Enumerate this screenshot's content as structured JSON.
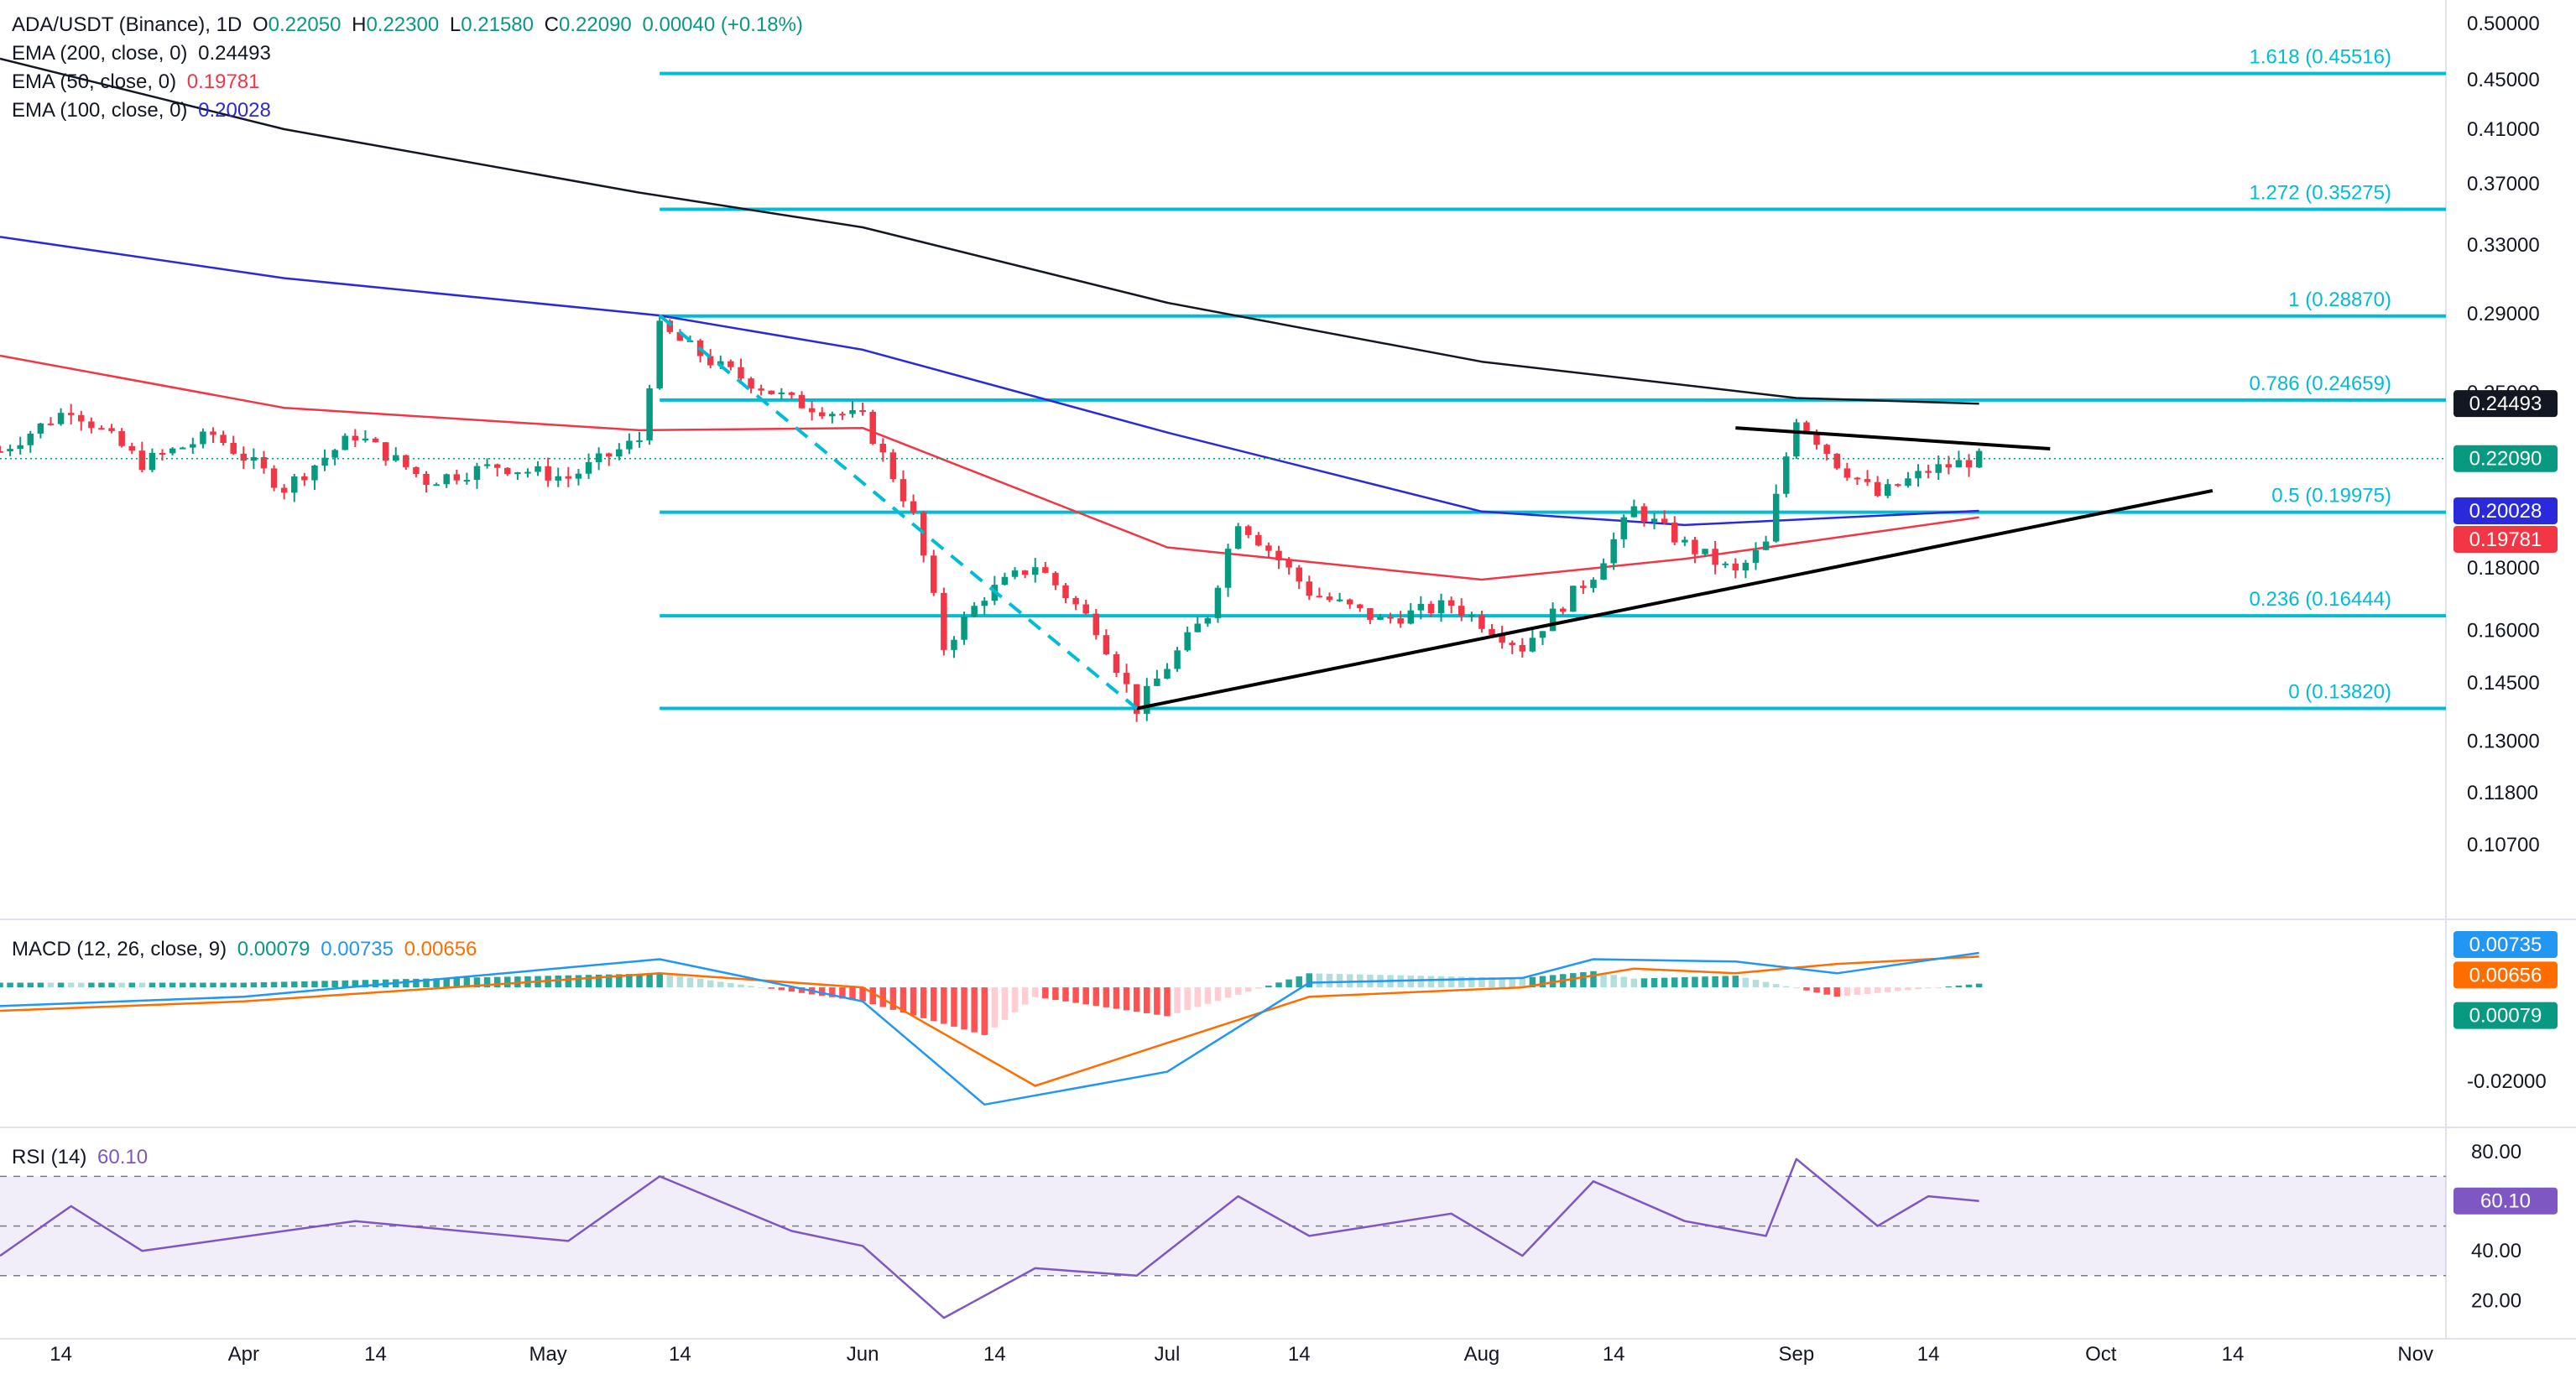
{
  "header": {
    "symbol": "ADA/USDT (Binance), 1D",
    "o_label": "O",
    "o": "0.22050",
    "h_label": "H",
    "h": "0.22300",
    "l_label": "L",
    "l": "0.21580",
    "c_label": "C",
    "c": "0.22090",
    "change": "0.00040 (+0.18%)"
  },
  "ema_legend": [
    {
      "label": "EMA (200, close, 0)",
      "value": "0.24493",
      "color": "#131722"
    },
    {
      "label": "EMA (50, close, 0)",
      "value": "0.19781",
      "color": "#f23645"
    },
    {
      "label": "EMA (100, close, 0)",
      "value": "0.20028",
      "color": "#2a2adb"
    }
  ],
  "macd_legend": {
    "label": "MACD (12, 26, close, 9)",
    "hist": "0.00079",
    "macd": "0.00735",
    "signal": "0.00656"
  },
  "rsi_legend": {
    "label": "RSI (14)",
    "value": "60.10"
  },
  "colors": {
    "up": "#089981",
    "down": "#f23645",
    "fib": "#00bcd4",
    "ema200": "#131722",
    "ema50": "#f23645",
    "ema100": "#2a2adb",
    "macd": "#2196f3",
    "signal": "#ff6d00",
    "rsi": "#7e57c2"
  },
  "chart_data": [
    {
      "type": "candlestick",
      "symbol": "ADA/USDT",
      "timeframe": "1D",
      "y_scale": "log",
      "ylim": [
        0.1,
        0.5
      ],
      "y_ticks": [
        "0.50000",
        "0.45000",
        "0.41000",
        "0.37000",
        "0.33000",
        "0.29000",
        "0.25000",
        "0.18000",
        "0.16000",
        "0.14500",
        "0.13000",
        "0.11800",
        "0.10700"
      ],
      "x_ticks": [
        "14",
        "Apr",
        "14",
        "May",
        "14",
        "Jun",
        "14",
        "Jul",
        "14",
        "Aug",
        "14",
        "Sep",
        "14",
        "Oct",
        "14",
        "Nov"
      ],
      "x_range": [
        "2024-03-08",
        "2024-11-04"
      ],
      "closes": [
        {
          "date": "2024-03-08",
          "close": 0.224
        },
        {
          "date": "2024-03-15",
          "close": 0.243
        },
        {
          "date": "2024-03-22",
          "close": 0.219
        },
        {
          "date": "2024-03-29",
          "close": 0.231
        },
        {
          "date": "2024-04-05",
          "close": 0.209
        },
        {
          "date": "2024-04-12",
          "close": 0.231
        },
        {
          "date": "2024-04-19",
          "close": 0.212
        },
        {
          "date": "2024-04-26",
          "close": 0.218
        },
        {
          "date": "2024-05-03",
          "close": 0.213
        },
        {
          "date": "2024-05-10",
          "close": 0.229
        },
        {
          "date": "2024-05-12",
          "close": 0.282
        },
        {
          "date": "2024-05-18",
          "close": 0.262
        },
        {
          "date": "2024-05-25",
          "close": 0.246
        },
        {
          "date": "2024-06-01",
          "close": 0.238
        },
        {
          "date": "2024-06-06",
          "close": 0.198
        },
        {
          "date": "2024-06-09",
          "close": 0.155
        },
        {
          "date": "2024-06-13",
          "close": 0.171
        },
        {
          "date": "2024-06-18",
          "close": 0.181
        },
        {
          "date": "2024-06-24",
          "close": 0.161
        },
        {
          "date": "2024-06-28",
          "close": 0.1382
        },
        {
          "date": "2024-07-05",
          "close": 0.165
        },
        {
          "date": "2024-07-08",
          "close": 0.197
        },
        {
          "date": "2024-07-15",
          "close": 0.172
        },
        {
          "date": "2024-07-22",
          "close": 0.163
        },
        {
          "date": "2024-07-29",
          "close": 0.168
        },
        {
          "date": "2024-08-05",
          "close": 0.155
        },
        {
          "date": "2024-08-12",
          "close": 0.178
        },
        {
          "date": "2024-08-16",
          "close": 0.201
        },
        {
          "date": "2024-08-21",
          "close": 0.188
        },
        {
          "date": "2024-08-26",
          "close": 0.178
        },
        {
          "date": "2024-08-29",
          "close": 0.188
        },
        {
          "date": "2024-09-01",
          "close": 0.239
        },
        {
          "date": "2024-09-05",
          "close": 0.219
        },
        {
          "date": "2024-09-09",
          "close": 0.206
        },
        {
          "date": "2024-09-14",
          "close": 0.216
        },
        {
          "date": "2024-09-19",
          "close": 0.2209
        }
      ],
      "ema200": [
        {
          "date": "2024-03-08",
          "value": 0.468
        },
        {
          "date": "2024-04-05",
          "value": 0.41
        },
        {
          "date": "2024-05-10",
          "value": 0.364
        },
        {
          "date": "2024-06-01",
          "value": 0.341
        },
        {
          "date": "2024-07-01",
          "value": 0.296
        },
        {
          "date": "2024-08-01",
          "value": 0.265
        },
        {
          "date": "2024-09-01",
          "value": 0.2475
        },
        {
          "date": "2024-09-19",
          "value": 0.24493
        }
      ],
      "ema100": [
        {
          "date": "2024-03-08",
          "value": 0.335
        },
        {
          "date": "2024-04-05",
          "value": 0.31
        },
        {
          "date": "2024-05-12",
          "value": 0.289
        },
        {
          "date": "2024-06-01",
          "value": 0.271
        },
        {
          "date": "2024-07-01",
          "value": 0.232
        },
        {
          "date": "2024-08-01",
          "value": 0.2
        },
        {
          "date": "2024-08-21",
          "value": 0.195
        },
        {
          "date": "2024-09-19",
          "value": 0.20028
        }
      ],
      "ema50": [
        {
          "date": "2024-03-08",
          "value": 0.268
        },
        {
          "date": "2024-04-05",
          "value": 0.243
        },
        {
          "date": "2024-05-10",
          "value": 0.233
        },
        {
          "date": "2024-06-01",
          "value": 0.234
        },
        {
          "date": "2024-07-01",
          "value": 0.187
        },
        {
          "date": "2024-08-01",
          "value": 0.176
        },
        {
          "date": "2024-08-21",
          "value": 0.183
        },
        {
          "date": "2024-09-19",
          "value": 0.19781
        }
      ],
      "fibonacci": [
        {
          "level": "1.618 (0.45516)",
          "price": 0.45516
        },
        {
          "level": "1.272 (0.35275)",
          "price": 0.35275
        },
        {
          "level": "1 (0.28870)",
          "price": 0.2887
        },
        {
          "level": "0.786 (0.24659)",
          "price": 0.24659
        },
        {
          "level": "0.5 (0.19975)",
          "price": 0.19975
        },
        {
          "level": "0.236 (0.16444)",
          "price": 0.16444
        },
        {
          "level": "0 (0.13820)",
          "price": 0.1382
        }
      ],
      "trendlines": [
        {
          "kind": "support",
          "from": {
            "date": "2024-06-28",
            "price": 0.1382
          },
          "to": {
            "date": "2024-10-12",
            "price": 0.208
          }
        },
        {
          "kind": "resistance",
          "from": {
            "date": "2024-08-26",
            "price": 0.234
          },
          "to": {
            "date": "2024-09-26",
            "price": 0.225
          }
        },
        {
          "kind": "dashed-leg",
          "from": {
            "date": "2024-05-12",
            "price": 0.289
          },
          "to": {
            "date": "2024-06-28",
            "price": 0.1382
          }
        }
      ],
      "price_tags": [
        {
          "value": "0.24493",
          "bg": "#131722"
        },
        {
          "value": "0.22090",
          "bg": "#089981"
        },
        {
          "value": "0.20028",
          "bg": "#2a2adb"
        },
        {
          "value": "0.19781",
          "bg": "#f23645"
        }
      ]
    },
    {
      "type": "line+histogram",
      "title": "MACD (12, 26, close, 9)",
      "ylim": [
        -0.027,
        0.012
      ],
      "y_ticks": [
        "-0.02000"
      ],
      "macd": [
        {
          "date": "2024-03-08",
          "value": -0.004
        },
        {
          "date": "2024-04-01",
          "value": -0.002
        },
        {
          "date": "2024-05-12",
          "value": 0.006
        },
        {
          "date": "2024-06-01",
          "value": -0.003
        },
        {
          "date": "2024-06-13",
          "value": -0.025
        },
        {
          "date": "2024-07-01",
          "value": -0.018
        },
        {
          "date": "2024-07-15",
          "value": 0.001
        },
        {
          "date": "2024-08-05",
          "value": 0.002
        },
        {
          "date": "2024-08-12",
          "value": 0.006
        },
        {
          "date": "2024-08-26",
          "value": 0.0055
        },
        {
          "date": "2024-09-05",
          "value": 0.003
        },
        {
          "date": "2024-09-19",
          "value": 0.00735
        }
      ],
      "signal": [
        {
          "date": "2024-03-08",
          "value": -0.005
        },
        {
          "date": "2024-04-01",
          "value": -0.003
        },
        {
          "date": "2024-05-12",
          "value": 0.003
        },
        {
          "date": "2024-06-01",
          "value": 0.0
        },
        {
          "date": "2024-06-18",
          "value": -0.021
        },
        {
          "date": "2024-07-15",
          "value": -0.002
        },
        {
          "date": "2024-08-05",
          "value": 0.0
        },
        {
          "date": "2024-08-16",
          "value": 0.004
        },
        {
          "date": "2024-08-26",
          "value": 0.003
        },
        {
          "date": "2024-09-05",
          "value": 0.005
        },
        {
          "date": "2024-09-19",
          "value": 0.00656
        }
      ],
      "histogram_last": 0.00079
    },
    {
      "type": "line",
      "title": "RSI (14)",
      "ylim": [
        10,
        85
      ],
      "y_ticks": [
        "80.00",
        "40.00",
        "20.00"
      ],
      "bands": [
        70,
        50,
        30
      ],
      "values": [
        {
          "date": "2024-03-08",
          "value": 38
        },
        {
          "date": "2024-03-15",
          "value": 58
        },
        {
          "date": "2024-03-22",
          "value": 40
        },
        {
          "date": "2024-04-12",
          "value": 52
        },
        {
          "date": "2024-05-03",
          "value": 44
        },
        {
          "date": "2024-05-12",
          "value": 70
        },
        {
          "date": "2024-05-25",
          "value": 48
        },
        {
          "date": "2024-06-01",
          "value": 42
        },
        {
          "date": "2024-06-09",
          "value": 13
        },
        {
          "date": "2024-06-18",
          "value": 33
        },
        {
          "date": "2024-06-28",
          "value": 30
        },
        {
          "date": "2024-07-08",
          "value": 62
        },
        {
          "date": "2024-07-15",
          "value": 46
        },
        {
          "date": "2024-07-29",
          "value": 55
        },
        {
          "date": "2024-08-05",
          "value": 38
        },
        {
          "date": "2024-08-12",
          "value": 68
        },
        {
          "date": "2024-08-21",
          "value": 52
        },
        {
          "date": "2024-08-29",
          "value": 46
        },
        {
          "date": "2024-09-01",
          "value": 77
        },
        {
          "date": "2024-09-09",
          "value": 50
        },
        {
          "date": "2024-09-14",
          "value": 62
        },
        {
          "date": "2024-09-19",
          "value": 60.1
        }
      ]
    }
  ]
}
